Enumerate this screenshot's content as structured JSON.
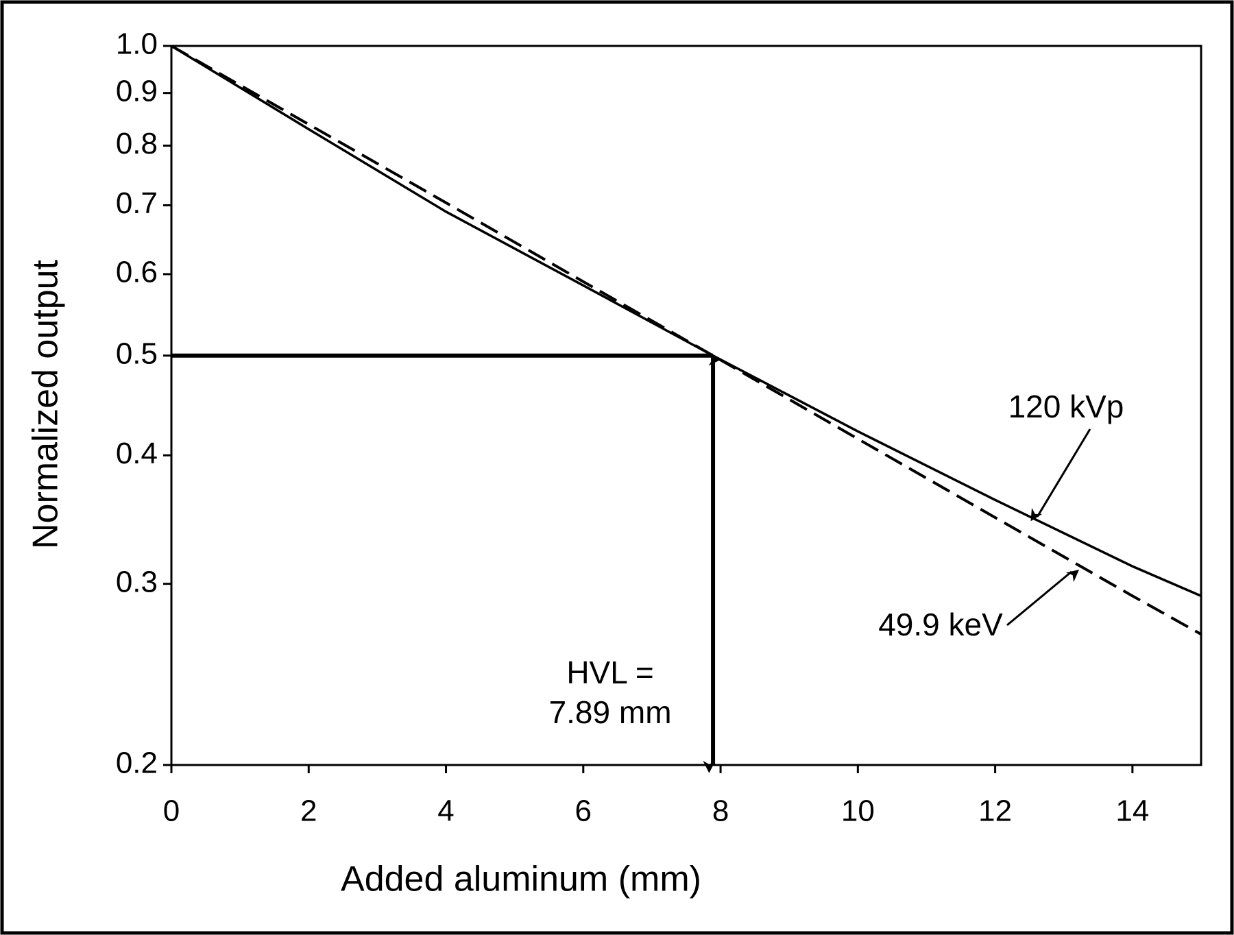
{
  "chart_data": {
    "type": "line",
    "x_label": "Added aluminum (mm)",
    "y_label": "Normalized output",
    "x": [
      0,
      2,
      4,
      6,
      7.89,
      10,
      12,
      14,
      15
    ],
    "series": [
      {
        "name": "120 kVp",
        "color": "#000000",
        "dash": "solid",
        "values": [
          1.0,
          0.83,
          0.69,
          0.585,
          0.5,
          0.422,
          0.362,
          0.312,
          0.292
        ]
      },
      {
        "name": "49.9 keV",
        "color": "#000000",
        "dash": "dashed",
        "values": [
          1.0,
          0.839,
          0.704,
          0.59,
          0.5,
          0.415,
          0.348,
          0.292,
          0.268
        ]
      }
    ],
    "xlim": [
      0,
      15
    ],
    "xticks": [
      0,
      2,
      4,
      6,
      8,
      10,
      12,
      14
    ],
    "ylim": [
      0.2,
      1
    ],
    "yticks": [
      0.2,
      0.3,
      0.4,
      0.5,
      0.6,
      0.7,
      0.8,
      0.9,
      {
        "value": 1,
        "label": "1.0"
      }
    ],
    "log_y": true,
    "grid": false,
    "hvl": {
      "x": 7.89,
      "y": 0.5,
      "label": [
        "HVL =",
        "7.89 mm"
      ]
    }
  }
}
